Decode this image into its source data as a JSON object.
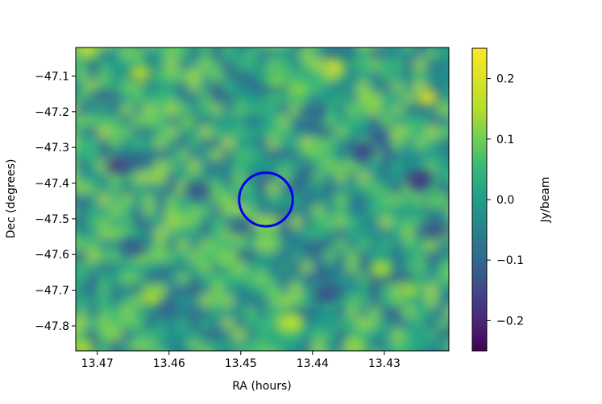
{
  "chart_data": {
    "type": "heatmap",
    "title": "",
    "xlabel": "RA (hours)",
    "ylabel": "Dec (degrees)",
    "xlim": [
      13.473,
      13.421
    ],
    "ylim": [
      -47.87,
      -47.02
    ],
    "x_ticks": [
      13.47,
      13.46,
      13.45,
      13.44,
      13.43
    ],
    "x_tick_labels": [
      "13.47",
      "13.46",
      "13.45",
      "13.44",
      "13.43"
    ],
    "y_ticks": [
      -47.1,
      -47.2,
      -47.3,
      -47.4,
      -47.5,
      -47.6,
      -47.7,
      -47.8
    ],
    "y_tick_labels": [
      "−47.1",
      "−47.2",
      "−47.3",
      "−47.4",
      "−47.5",
      "−47.6",
      "−47.7",
      "−47.8"
    ],
    "colorbar": {
      "label": "Jy/beam",
      "range": [
        -0.25,
        0.25
      ],
      "ticks": [
        0.2,
        0.1,
        0.0,
        -0.1,
        -0.2
      ],
      "tick_labels": [
        "0.2",
        "0.1",
        "0.0",
        "−0.1",
        "−0.2"
      ],
      "colormap": "viridis"
    },
    "circle": {
      "ra_center": 13.4465,
      "dec_center": -47.446,
      "radius_deg": 0.075,
      "color": "#0000ee"
    },
    "hotspots": [
      {
        "ra": 13.4715,
        "dec": -47.025,
        "value": 0.18
      },
      {
        "ra": 13.464,
        "dec": -47.092,
        "value": 0.15
      },
      {
        "ra": 13.437,
        "dec": -47.075,
        "value": 0.19
      },
      {
        "ra": 13.445,
        "dec": -47.11,
        "value": 0.1
      },
      {
        "ra": 13.424,
        "dec": -47.16,
        "value": 0.2
      },
      {
        "ra": 13.442,
        "dec": -47.14,
        "value": 0.11
      },
      {
        "ra": 13.4575,
        "dec": -47.23,
        "value": 0.09
      },
      {
        "ra": 13.4305,
        "dec": -47.64,
        "value": 0.14
      },
      {
        "ra": 13.4265,
        "dec": -47.7,
        "value": 0.13
      },
      {
        "ra": 13.4625,
        "dec": -47.72,
        "value": 0.14
      },
      {
        "ra": 13.443,
        "dec": -47.79,
        "value": 0.16
      },
      {
        "ra": 13.472,
        "dec": -47.86,
        "value": 0.15
      },
      {
        "ra": 13.434,
        "dec": -47.86,
        "value": 0.12
      },
      {
        "ra": 13.452,
        "dec": -47.61,
        "value": 0.1
      },
      {
        "ra": 13.423,
        "dec": -47.45,
        "value": 0.08
      }
    ],
    "coldspots": [
      {
        "ra": 13.467,
        "dec": -47.35,
        "value": -0.16
      },
      {
        "ra": 13.456,
        "dec": -47.42,
        "value": -0.13
      },
      {
        "ra": 13.433,
        "dec": -47.31,
        "value": -0.15
      },
      {
        "ra": 13.425,
        "dec": -47.39,
        "value": -0.18
      },
      {
        "ra": 13.438,
        "dec": -47.71,
        "value": -0.14
      },
      {
        "ra": 13.423,
        "dec": -47.53,
        "value": -0.13
      },
      {
        "ra": 13.465,
        "dec": -47.58,
        "value": -0.12
      },
      {
        "ra": 13.45,
        "dec": -47.52,
        "value": -0.1
      },
      {
        "ra": 13.44,
        "dec": -47.2,
        "value": -0.09
      },
      {
        "ra": 13.469,
        "dec": -47.16,
        "value": -0.08
      }
    ]
  }
}
